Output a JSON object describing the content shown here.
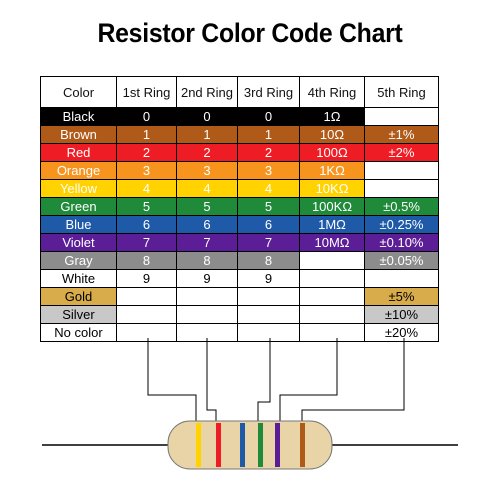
{
  "title": "Resistor Color Code Chart",
  "headers": [
    "Color",
    "1st Ring",
    "2nd Ring",
    "3rd Ring",
    "4th Ring",
    "5th Ring"
  ],
  "rows": [
    {
      "name": "Black",
      "bg": "#000000",
      "fg": "#ffffff",
      "ring1": "0",
      "ring2": "0",
      "ring3": "0",
      "ring4": "1Ω",
      "ring5": ""
    },
    {
      "name": "Brown",
      "bg": "#b05a1a",
      "fg": "#ffffff",
      "ring1": "1",
      "ring2": "1",
      "ring3": "1",
      "ring4": "10Ω",
      "ring5": "±1%"
    },
    {
      "name": "Red",
      "bg": "#ee1c24",
      "fg": "#ffffff",
      "ring1": "2",
      "ring2": "2",
      "ring3": "2",
      "ring4": "100Ω",
      "ring5": "±2%"
    },
    {
      "name": "Orange",
      "bg": "#f7941d",
      "fg": "#ffffff",
      "ring1": "3",
      "ring2": "3",
      "ring3": "3",
      "ring4": "1KΩ",
      "ring5": ""
    },
    {
      "name": "Yellow",
      "bg": "#ffd200",
      "fg": "#ffffff",
      "ring1": "4",
      "ring2": "4",
      "ring3": "4",
      "ring4": "10KΩ",
      "ring5": ""
    },
    {
      "name": "Green",
      "bg": "#1e8a3a",
      "fg": "#ffffff",
      "ring1": "5",
      "ring2": "5",
      "ring3": "5",
      "ring4": "100KΩ",
      "ring5": "±0.5%"
    },
    {
      "name": "Blue",
      "bg": "#1f5aa8",
      "fg": "#ffffff",
      "ring1": "6",
      "ring2": "6",
      "ring3": "6",
      "ring4": "1MΩ",
      "ring5": "±0.25%"
    },
    {
      "name": "Violet",
      "bg": "#5b1e96",
      "fg": "#ffffff",
      "ring1": "7",
      "ring2": "7",
      "ring3": "7",
      "ring4": "10MΩ",
      "ring5": "±0.10%"
    },
    {
      "name": "Gray",
      "bg": "#8c8c8c",
      "fg": "#ffffff",
      "ring1": "8",
      "ring2": "8",
      "ring3": "8",
      "ring4": "",
      "ring5": "±0.05%"
    },
    {
      "name": "White",
      "bg": "#ffffff",
      "fg": "#000000",
      "ring1": "9",
      "ring2": "9",
      "ring3": "9",
      "ring4": "",
      "ring5": ""
    },
    {
      "name": "Gold",
      "bg": "#d8ac4a",
      "fg": "#000000",
      "ring1": "",
      "ring2": "",
      "ring3": "",
      "ring4": "",
      "ring5": "±5%"
    },
    {
      "name": "Silver",
      "bg": "#c8c8c8",
      "fg": "#000000",
      "ring1": "",
      "ring2": "",
      "ring3": "",
      "ring4": "",
      "ring5": "±10%"
    },
    {
      "name": "No color",
      "bg": "#ffffff",
      "fg": "#000000",
      "ring1": "",
      "ring2": "",
      "ring3": "",
      "ring4": "",
      "ring5": "±20%"
    }
  ],
  "fourth_ring_blank_color": "#ffffff",
  "resistor": {
    "body_color": "#e8d4a6",
    "band_colors": [
      "#ffd200",
      "#ee1c24",
      "#1f5aa8",
      "#1e8a3a",
      "#5b1e96",
      "#b05a1a"
    ],
    "lead_color": "#000000"
  }
}
